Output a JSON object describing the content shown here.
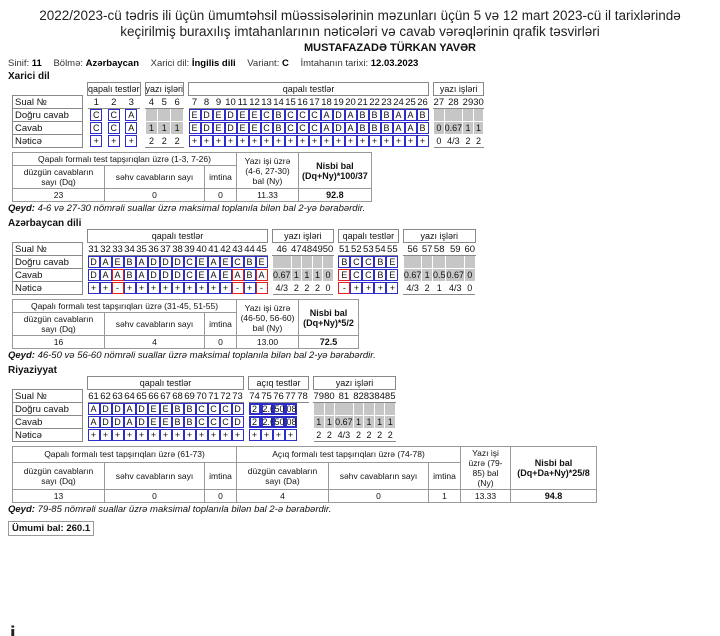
{
  "header": {
    "line1": "2022/2023-cü tədris ili üçün ümumtəhsil müəssisələrinin məzunları üçün 5 və 12 mart 2023-cü il tarixlərində",
    "line2": "keçirilmiş buraxılış imtahanlarının nəticələri və cavab vərəqlərinin qrafik təsvirləri",
    "student": "MUSTAFAZADƏ TÜRKAN YAVƏR"
  },
  "meta": [
    {
      "label": "Sinif:",
      "value": "11"
    },
    {
      "label": "Bölmə:",
      "value": "Azərbaycan"
    },
    {
      "label": "Xarici dil:",
      "value": "İngilis dili"
    },
    {
      "label": "Variant:",
      "value": "C"
    },
    {
      "label": "İmtahanın tarixi:",
      "value": "12.03.2023"
    }
  ],
  "labels": {
    "row_sual": "Sual №",
    "row_dogru": "Doğru cavab",
    "row_cavab": "Cavab",
    "row_netice": "Nəticə",
    "qapali": "qapalı testlər",
    "yazi": "yazı işləri",
    "aciq": "açıq testlər"
  },
  "sections": {
    "xarici": {
      "title": "Xarici dil",
      "summary": {
        "qapali_header": "Qapalı formalı test tapşırıqları üzrə (1-3, 7-26)",
        "correct_label": "düzgün cavabların sayı (Dq)",
        "wrong_label": "səhv cavabların sayı",
        "abstain_label": "imtina",
        "yazi_label": "Yazı işi üzrə (4-6, 27-30) bal (Ny)",
        "nisbi_label": "Nisbi bal (Dq+Ny)*100/37",
        "correct": "23",
        "wrong": "0",
        "abstain": "0",
        "yazi": "11.33",
        "nisbi": "92.8"
      },
      "note": "4-6 və 27-30 nömrəli suallar üzrə maksimal toplanıla bilən bal 2-yə bərabərdir."
    },
    "azerbaycan": {
      "title": "Azərbaycan dili",
      "summary": {
        "qapali_header": "Qapalı formalı test tapşırıqları üzrə (31-45, 51-55)",
        "correct_label": "düzgün cavabların sayı (Dq)",
        "wrong_label": "səhv cavabların sayı",
        "abstain_label": "imtina",
        "yazi_label": "Yazı işi üzrə (46-50, 56-60) bal (Ny)",
        "nisbi_label": "Nisbi bal (Dq+Ny)*5/2",
        "correct": "16",
        "wrong": "4",
        "abstain": "0",
        "yazi": "13.00",
        "nisbi": "72.5"
      },
      "note": "46-50 və 56-60 nömrəli suallar üzrə maksimal toplanıla bilən bal 2-yə bərabərdir."
    },
    "riyaziyyat": {
      "title": "Riyaziyyat",
      "summary": {
        "qapali_header": "Qapalı formalı test tapşırıqları üzrə (61-73)",
        "aciq_header": "Açıq formalı test tapşırıqları üzrə (74-78)",
        "correct_label": "düzgün cavabların sayı (Dq)",
        "wrong_label": "səhv cavabların sayı",
        "abstain_label": "imtina",
        "correct_a_label": "düzgün cavabların sayı (Da)",
        "yazi_label": "Yazı işi üzrə (79-85) bal (Ny)",
        "nisbi_label": "Nisbi bal (Dq+Da+Ny)*25/8",
        "correct": "13",
        "wrong": "0",
        "abstain": "0",
        "correct_a": "4",
        "wrong_a": "0",
        "abstain_a": "1",
        "yazi": "13.33",
        "nisbi": "94.8"
      },
      "note": "79-85 nömrəli suallar üzrə maksimal toplanıla bilən bal 2-ə bərabərdir."
    }
  },
  "grids": {
    "xarici": [
      {
        "type": "q",
        "nums": [
          "1",
          "2",
          "3"
        ],
        "correct": [
          "C",
          "C",
          "A"
        ],
        "answer": [
          "C",
          "C",
          "A"
        ],
        "result": [
          "+",
          "+",
          "+"
        ]
      },
      {
        "type": "y",
        "nums": [
          "4",
          "5",
          "6"
        ],
        "answer": [
          "1",
          "1",
          "1"
        ],
        "result": [
          "2",
          "2",
          "2"
        ]
      },
      {
        "type": "q",
        "nums": [
          "7",
          "8",
          "9",
          "10",
          "11",
          "12",
          "13",
          "14",
          "15",
          "16",
          "17",
          "18",
          "19",
          "20",
          "21",
          "22",
          "23",
          "24",
          "25",
          "26"
        ],
        "correct": [
          "E",
          "D",
          "E",
          "D",
          "E",
          "E",
          "C",
          "B",
          "C",
          "C",
          "C",
          "A",
          "D",
          "A",
          "B",
          "B",
          "B",
          "A",
          "A",
          "B"
        ],
        "answer": [
          "E",
          "D",
          "E",
          "D",
          "E",
          "E",
          "C",
          "B",
          "C",
          "C",
          "C",
          "A",
          "D",
          "A",
          "B",
          "B",
          "B",
          "A",
          "A",
          "B"
        ],
        "result": [
          "+",
          "+",
          "+",
          "+",
          "+",
          "+",
          "+",
          "+",
          "+",
          "+",
          "+",
          "+",
          "+",
          "+",
          "+",
          "+",
          "+",
          "+",
          "+",
          "+"
        ]
      },
      {
        "type": "y",
        "nums": [
          "27",
          "28",
          "29",
          "30"
        ],
        "answer": [
          "0",
          "0.67",
          "1",
          "1"
        ],
        "result": [
          "0",
          "4/3",
          "2",
          "2"
        ]
      }
    ],
    "azerbaycan": [
      {
        "type": "q",
        "nums": [
          "31",
          "32",
          "33",
          "34",
          "35",
          "36",
          "37",
          "38",
          "39",
          "40",
          "41",
          "42",
          "43",
          "44",
          "45"
        ],
        "correct": [
          "D",
          "A",
          "E",
          "B",
          "A",
          "D",
          "D",
          "D",
          "C",
          "E",
          "A",
          "E",
          "C",
          "B",
          "E"
        ],
        "answer": [
          "D",
          "A",
          "A",
          "B",
          "A",
          "D",
          "D",
          "D",
          "C",
          "E",
          "A",
          "E",
          "A",
          "B",
          "A"
        ],
        "result": [
          "+",
          "+",
          "-",
          "+",
          "+",
          "+",
          "+",
          "+",
          "+",
          "+",
          "+",
          "+",
          "-",
          "+",
          "-"
        ]
      },
      {
        "type": "y",
        "nums": [
          "46",
          "47",
          "48",
          "49",
          "50"
        ],
        "answer": [
          "0.67",
          "1",
          "1",
          "1",
          "0"
        ],
        "result": [
          "4/3",
          "2",
          "2",
          "2",
          "0"
        ]
      },
      {
        "type": "q",
        "nums": [
          "51",
          "52",
          "53",
          "54",
          "55"
        ],
        "correct": [
          "B",
          "C",
          "C",
          "B",
          "E"
        ],
        "answer": [
          "E",
          "C",
          "C",
          "B",
          "E"
        ],
        "result": [
          "-",
          "+",
          "+",
          "+",
          "+"
        ]
      },
      {
        "type": "y",
        "nums": [
          "56",
          "57",
          "58",
          "59",
          "60"
        ],
        "answer": [
          "0.67",
          "1",
          "0.5",
          "0.67",
          "0"
        ],
        "result": [
          "4/3",
          "2",
          "1",
          "4/3",
          "0"
        ]
      }
    ],
    "riyaziyyat": [
      {
        "type": "q",
        "nums": [
          "61",
          "62",
          "63",
          "64",
          "65",
          "66",
          "67",
          "68",
          "69",
          "70",
          "71",
          "72",
          "73"
        ],
        "correct": [
          "A",
          "D",
          "D",
          "A",
          "D",
          "E",
          "E",
          "B",
          "B",
          "C",
          "C",
          "C",
          "D"
        ],
        "answer": [
          "A",
          "D",
          "D",
          "A",
          "D",
          "E",
          "E",
          "B",
          "B",
          "C",
          "C",
          "C",
          "D"
        ],
        "result": [
          "+",
          "+",
          "+",
          "+",
          "+",
          "+",
          "+",
          "+",
          "+",
          "+",
          "+",
          "+",
          "+"
        ]
      },
      {
        "type": "a",
        "nums": [
          "74",
          "75",
          "76",
          "77",
          "78"
        ],
        "correct": [
          "2",
          "2.6",
          "50",
          "08",
          ""
        ],
        "answer": [
          "2",
          "2.6",
          "50",
          "08",
          ""
        ],
        "result": [
          "+",
          "+",
          "+",
          "+",
          ""
        ]
      },
      {
        "type": "y",
        "nums": [
          "79",
          "80",
          "81",
          "82",
          "83",
          "84",
          "85"
        ],
        "answer": [
          "1",
          "1",
          "0.67",
          "1",
          "1",
          "1",
          "1"
        ],
        "result": [
          "2",
          "2",
          "4/3",
          "2",
          "2",
          "2",
          "2"
        ]
      }
    ]
  },
  "total": "Ümumi bal: 260.1"
}
